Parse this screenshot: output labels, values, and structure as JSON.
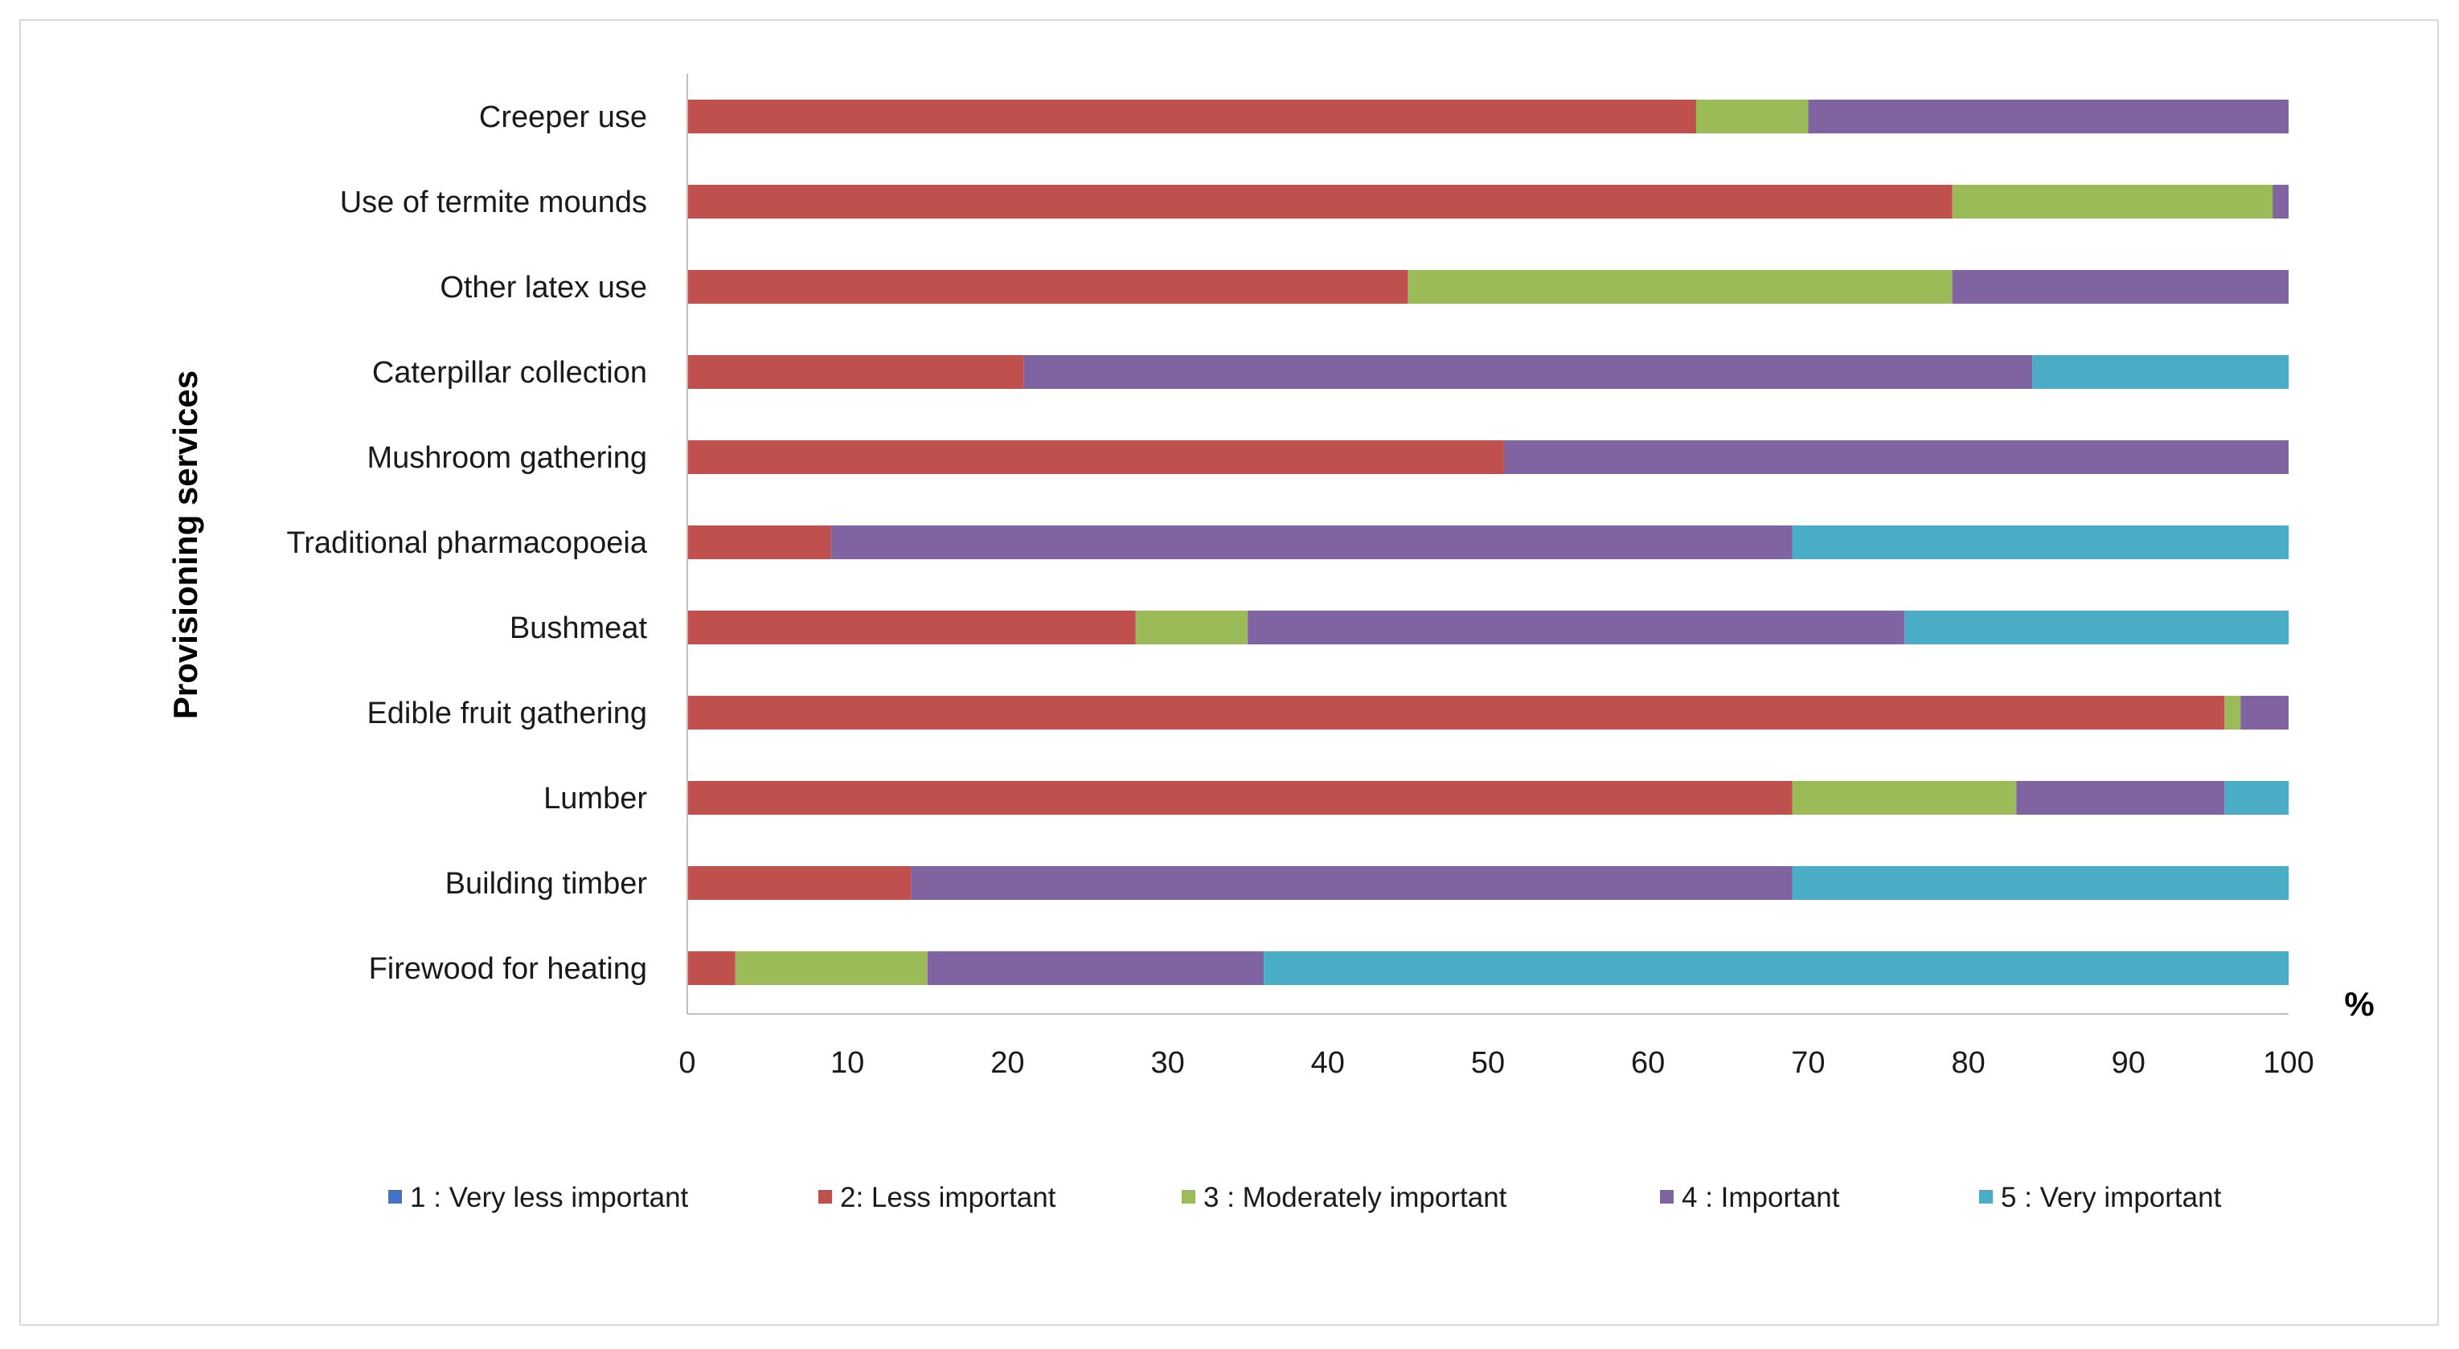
{
  "chart_data": {
    "type": "bar",
    "orientation": "horizontal",
    "stacked": true,
    "title": "",
    "ylabel": "Provisioning services",
    "xlabel": "",
    "x_unit_label": "%",
    "xlim": [
      0,
      100
    ],
    "x_ticks": [
      "0",
      "10",
      "20",
      "30",
      "40",
      "50",
      "60",
      "70",
      "80",
      "90",
      "100"
    ],
    "grid": false,
    "legend_position": "bottom",
    "categories": [
      "Creeper use",
      "Use of termite mounds",
      "Other latex use",
      "Caterpillar collection",
      "Mushroom gathering",
      "Traditional pharmacopoeia",
      "Bushmeat",
      "Edible fruit gathering",
      "Lumber",
      "Building timber",
      "Firewood for heating"
    ],
    "series": [
      {
        "name": "1 : Very less important",
        "color": "#4472c4",
        "values": [
          0,
          0,
          0,
          0,
          0,
          0,
          0,
          0,
          0,
          0,
          0
        ]
      },
      {
        "name": "2:  Less important",
        "color": "#c0504d",
        "values": [
          63,
          79,
          45,
          21,
          51,
          9,
          28,
          96,
          69,
          14,
          3
        ]
      },
      {
        "name": "3 : Moderately important",
        "color": "#9bbb59",
        "values": [
          7,
          20,
          34,
          0,
          0,
          0,
          7,
          1,
          14,
          0,
          12
        ]
      },
      {
        "name": "4 : Important",
        "color": "#8064a2",
        "values": [
          30,
          1,
          21,
          63,
          49,
          60,
          41,
          3,
          13,
          55,
          21
        ]
      },
      {
        "name": "5 : Very important",
        "color": "#4bacc6",
        "values": [
          0,
          0,
          0,
          16,
          0,
          31,
          24,
          0,
          4,
          31,
          64
        ]
      }
    ]
  }
}
